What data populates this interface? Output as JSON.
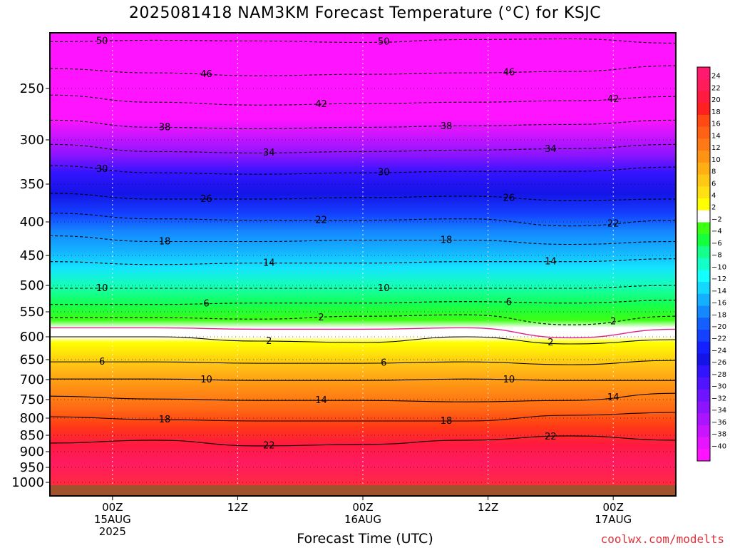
{
  "chart_data": {
    "type": "heatmap",
    "title": "2025081418 NAM3KM Forecast Temperature (°C) for KSJC",
    "xlabel": "Forecast Time (UTC)",
    "credit": "coolwx.com/modelts",
    "y_axis": {
      "label": "",
      "scale": "pressure (hPa), inverted",
      "range": [
        1000,
        200
      ],
      "ticks": [
        250,
        300,
        350,
        400,
        450,
        500,
        550,
        600,
        650,
        700,
        750,
        800,
        850,
        900,
        950,
        1000
      ]
    },
    "x_axis": {
      "range_hours": [
        -6,
        54
      ],
      "ticks": [
        {
          "hour": 0,
          "lines": [
            "00Z",
            "15AUG",
            "2025"
          ]
        },
        {
          "hour": 12,
          "lines": [
            "12Z"
          ]
        },
        {
          "hour": 24,
          "lines": [
            "00Z",
            "16AUG"
          ]
        },
        {
          "hour": 36,
          "lines": [
            "12Z"
          ]
        },
        {
          "hour": 48,
          "lines": [
            "00Z",
            "17AUG"
          ]
        }
      ]
    },
    "colorbar": {
      "labels": [
        24,
        22,
        20,
        18,
        16,
        14,
        12,
        10,
        8,
        6,
        4,
        2,
        -2,
        -4,
        -6,
        -8,
        -10,
        -12,
        -14,
        -16,
        -18,
        -20,
        -22,
        -24,
        -26,
        -28,
        -30,
        -32,
        -34,
        -36,
        -38,
        -40
      ],
      "colors": [
        "#ff1a70",
        "#ff1c5a",
        "#ff1a40",
        "#ff2020",
        "#ff4a14",
        "#ff6214",
        "#ff7a14",
        "#ff9414",
        "#ffae14",
        "#ffc814",
        "#ffe014",
        "#ffff00",
        "#ffffff",
        "#3cff14",
        "#14ff3c",
        "#14ff8c",
        "#14ffc8",
        "#14ffff",
        "#14d8ff",
        "#14b0ff",
        "#1488ff",
        "#1460ff",
        "#1440ff",
        "#1420ff",
        "#1414e6",
        "#3214ff",
        "#5014ff",
        "#6e14ff",
        "#8c14ff",
        "#aa14ff",
        "#c814ff",
        "#e614ff",
        "#ff14ff"
      ]
    },
    "isotherms": [
      {
        "value": -50,
        "label": "50"
      },
      {
        "value": -46,
        "label": "46"
      },
      {
        "value": -42,
        "label": "42"
      },
      {
        "value": -38,
        "label": "38"
      },
      {
        "value": -34,
        "label": "34"
      },
      {
        "value": -30,
        "label": "30"
      },
      {
        "value": -26,
        "label": "26"
      },
      {
        "value": -22,
        "label": "22"
      },
      {
        "value": -18,
        "label": "18"
      },
      {
        "value": -14,
        "label": "14"
      },
      {
        "value": -10,
        "label": "10"
      },
      {
        "value": -6,
        "label": "6"
      },
      {
        "value": -2,
        "label": "2"
      },
      {
        "value": 0,
        "label": ""
      },
      {
        "value": 2,
        "label": "2"
      },
      {
        "value": 6,
        "label": "6"
      },
      {
        "value": 10,
        "label": "10"
      },
      {
        "value": 14,
        "label": "14"
      },
      {
        "value": 18,
        "label": "18"
      },
      {
        "value": 22,
        "label": "22"
      }
    ]
  }
}
